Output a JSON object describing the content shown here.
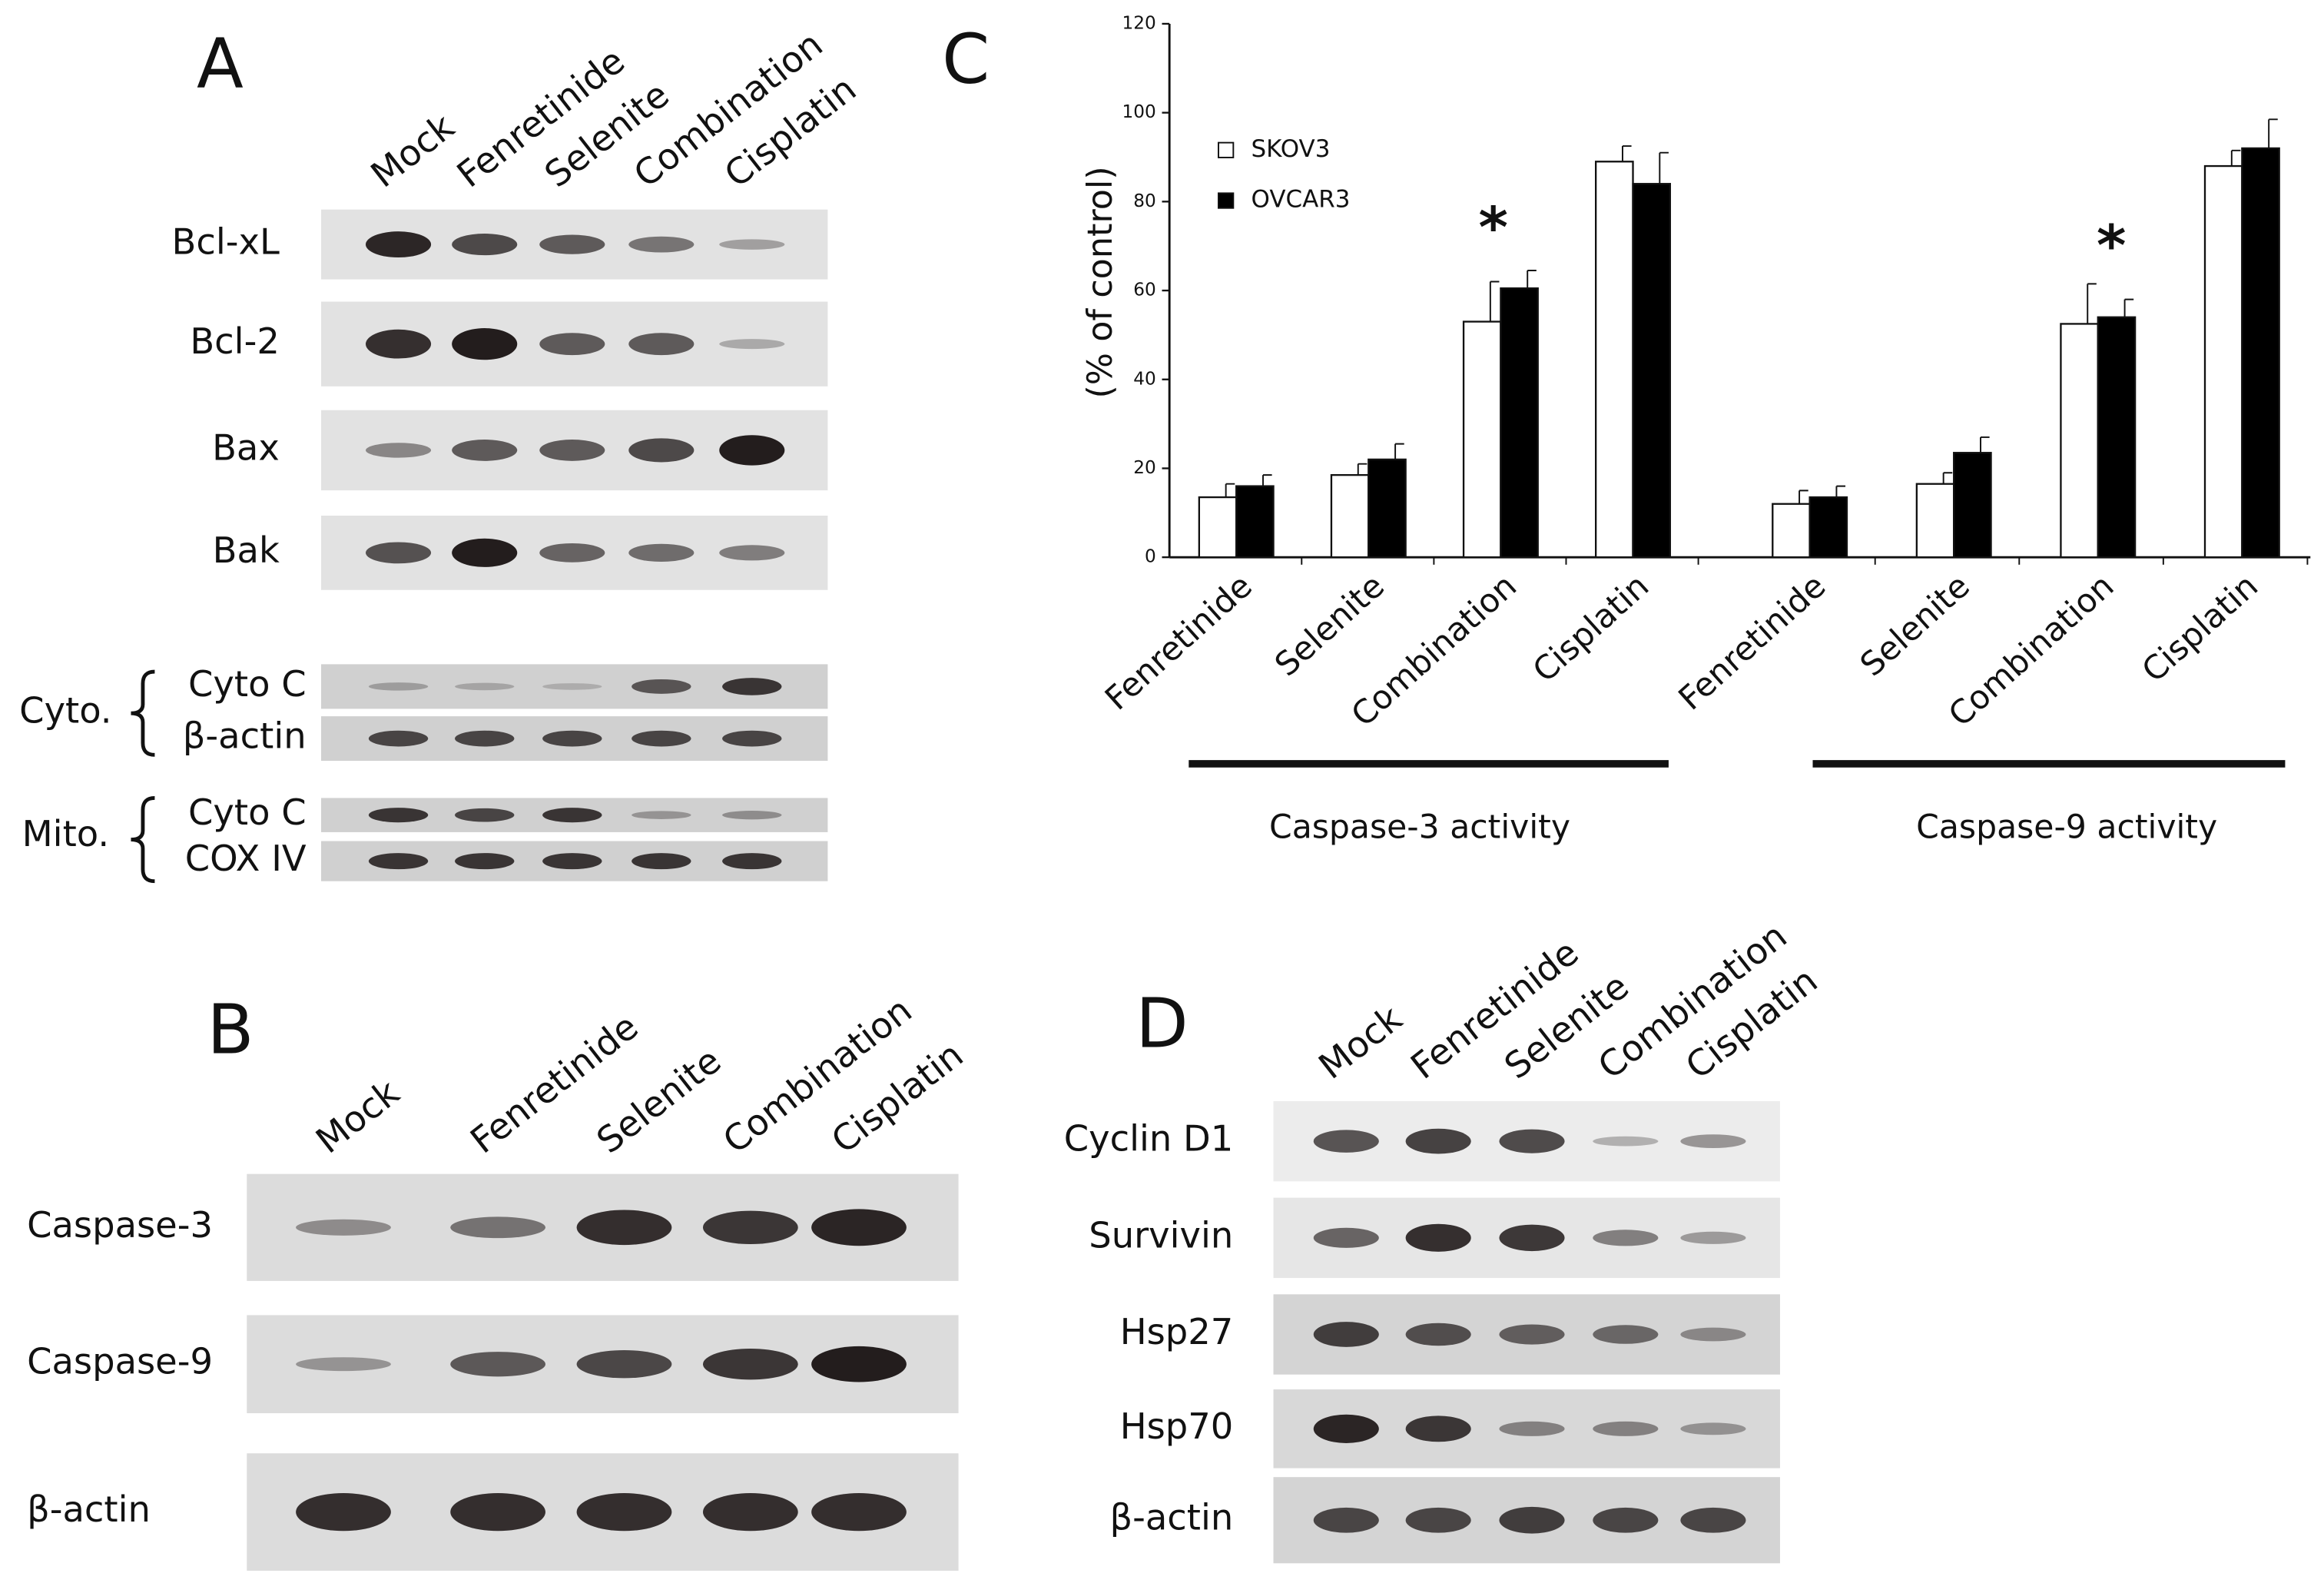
{
  "panels": {
    "A": {
      "letter": "A",
      "lanes": [
        "Mock",
        "Fenretinide",
        "Selenite",
        "Combination",
        "Cisplatin"
      ],
      "blots": [
        "Bcl-xL",
        "Bcl-2",
        "Bax",
        "Bak"
      ],
      "fractions": [
        {
          "label": "Cyto.",
          "blots": [
            "Cyto C",
            "β-actin"
          ]
        },
        {
          "label": "Mito.",
          "blots": [
            "Cyto C",
            "COX IV"
          ]
        }
      ]
    },
    "B": {
      "letter": "B",
      "lanes": [
        "Mock",
        "Fenretinide",
        "Selenite",
        "Combination",
        "Cisplatin"
      ],
      "blots": [
        "Caspase-3",
        "Caspase-9",
        "β-actin"
      ]
    },
    "D": {
      "letter": "D",
      "lanes": [
        "Mock",
        "Fenretinide",
        "Selenite",
        "Combination",
        "Cisplatin"
      ],
      "blots": [
        "Cyclin D1",
        "Survivin",
        "Hsp27",
        "Hsp70",
        "β-actin"
      ]
    }
  },
  "chart_data": {
    "type": "bar",
    "letter": "C",
    "ylabel": "(% of control)",
    "groups": [
      {
        "label": "Caspase-3 activity",
        "categories": [
          "Fenretinide",
          "Selenite",
          "Combination",
          "Cisplatin"
        ]
      },
      {
        "label": "Caspase-9 activity",
        "categories": [
          "Fenretinide",
          "Selenite",
          "Combination",
          "Cisplatin"
        ]
      }
    ],
    "series": [
      {
        "name": "SKOV3",
        "color": "#ffffff",
        "values": [
          13.5,
          18.5,
          53,
          89,
          12,
          16.5,
          52.5,
          88
        ],
        "errors": [
          3,
          2.5,
          9,
          3.5,
          3,
          2.5,
          9,
          3.5
        ]
      },
      {
        "name": "OVCAR3",
        "color": "#000000",
        "values": [
          16,
          22,
          60.5,
          84,
          13.5,
          23.5,
          54,
          92
        ],
        "errors": [
          2.5,
          3.5,
          4,
          7,
          2.5,
          3.5,
          4,
          6.5
        ]
      }
    ],
    "annotations": [
      "*",
      "*"
    ],
    "ylim": [
      0,
      120
    ],
    "yticks": [
      0,
      20,
      40,
      60,
      80,
      100,
      120
    ]
  }
}
